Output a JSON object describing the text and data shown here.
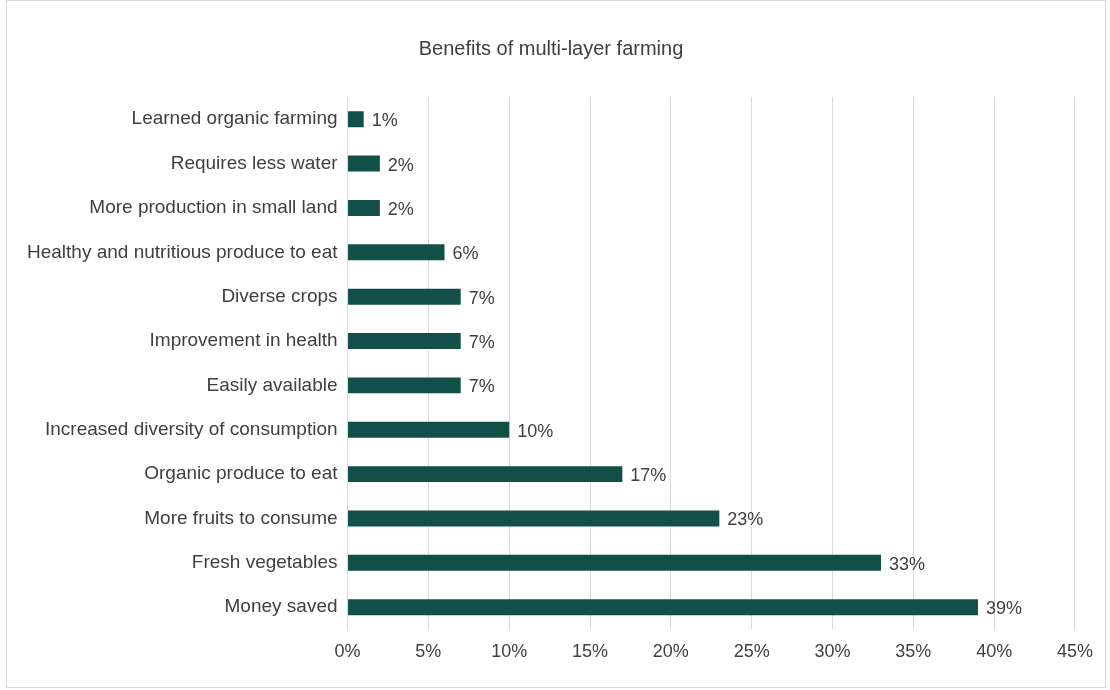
{
  "chart_data": {
    "type": "bar",
    "orientation": "horizontal",
    "title": "Benefits of multi-layer farming",
    "categories": [
      "Learned organic farming",
      "Requires less water",
      "More production in small land",
      "Healthy and nutritious produce to eat",
      "Diverse crops",
      "Improvement in health",
      "Easily available",
      "Increased diversity of consumption",
      "Organic produce to eat",
      "More fruits to consume",
      "Fresh vegetables",
      "Money saved"
    ],
    "values": [
      1,
      2,
      2,
      6,
      7,
      7,
      7,
      10,
      17,
      23,
      33,
      39
    ],
    "value_labels": [
      "1%",
      "2%",
      "2%",
      "6%",
      "7%",
      "7%",
      "7%",
      "10%",
      "17%",
      "23%",
      "33%",
      "39%"
    ],
    "color": "#134f49",
    "xlim": [
      0,
      45
    ],
    "xticks": [
      {
        "value": 0,
        "label": "0%"
      },
      {
        "value": 5,
        "label": "5%"
      },
      {
        "value": 10,
        "label": "10%"
      },
      {
        "value": 15,
        "label": "15%"
      },
      {
        "value": 20,
        "label": "20%"
      },
      {
        "value": 25,
        "label": "25%"
      },
      {
        "value": 30,
        "label": "30%"
      },
      {
        "value": 35,
        "label": "35%"
      },
      {
        "value": 40,
        "label": "40%"
      },
      {
        "value": 45,
        "label": "45%"
      }
    ],
    "grid": "x",
    "legend": false
  }
}
